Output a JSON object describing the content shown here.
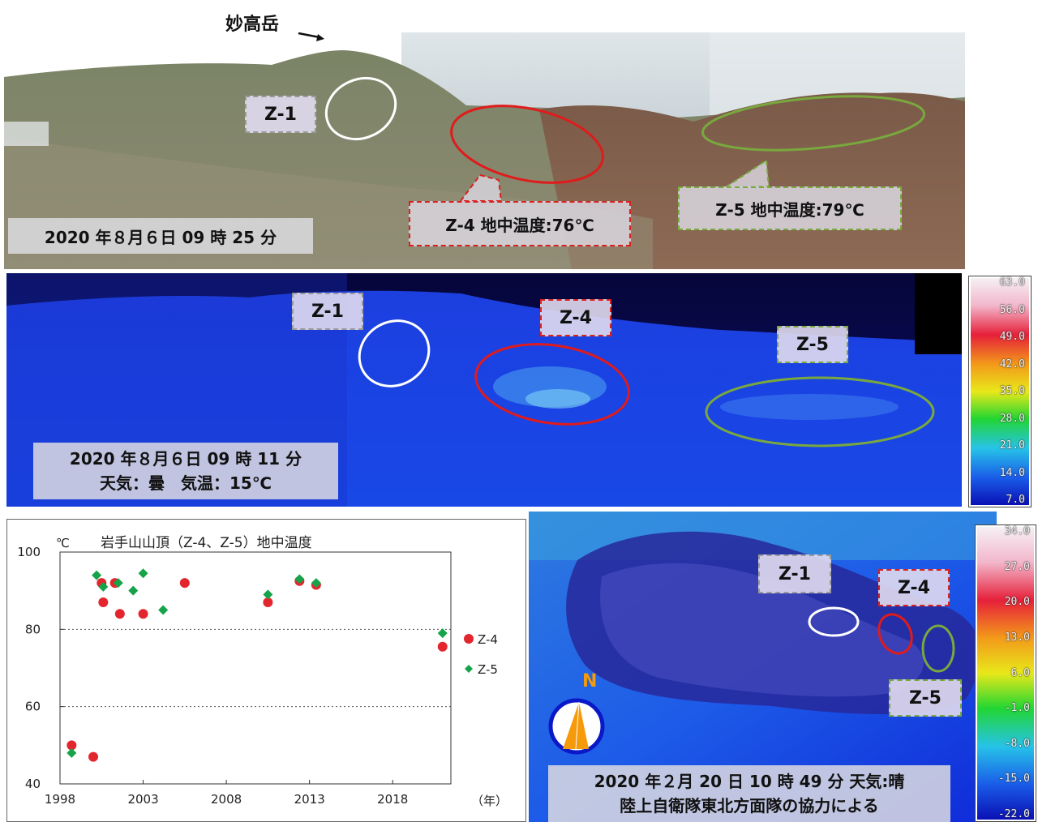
{
  "top_photo": {
    "peak_label": "妙高岳",
    "timestamp": "2020 年８月６日 09 時 25 分",
    "zones": {
      "z1": "Z-1",
      "z4": "Z-4  地中温度:76℃",
      "z5": "Z-5  地中温度:79℃"
    }
  },
  "thermal_top": {
    "zones": {
      "z1": "Z-1",
      "z4": "Z-4",
      "z5": "Z-5"
    },
    "info_line1": "2020 年８月６日 09 時 11 分",
    "info_line2": "天気：曇　気温：15℃",
    "scale": [
      "63.0",
      "56.0",
      "49.0",
      "42.0",
      "35.0",
      "28.0",
      "21.0",
      "14.0",
      "7.0"
    ]
  },
  "thermal_bottom": {
    "zones": {
      "z1": "Z-1",
      "z4": "Z-4",
      "z5": "Z-5"
    },
    "compass_label": "N",
    "info_line1": "2020 年２月 20 日 10 時 49 分 天気:晴",
    "info_line2": "陸上自衛隊東北方面隊の協力による",
    "scale": [
      "34.0",
      "27.0",
      "20.0",
      "13.0",
      "6.0",
      "-1.0",
      "-8.0",
      "-15.0",
      "-22.0"
    ]
  },
  "colors": {
    "z1_ellipse": "#ffffff",
    "z4_ellipse": "#e01b1b",
    "z5_ellipse": "#79a83e",
    "z4_marker": "#e3262e",
    "z5_marker": "#16a34a",
    "compass_needle": "#f59a0b"
  },
  "chart_data": {
    "type": "scatter",
    "title": "岩手山山頂（Z-4、Z-5）地中温度",
    "unit_label": "℃",
    "xlabel": "（年）",
    "xlim": [
      1998,
      2021.5
    ],
    "ylim": [
      40,
      100
    ],
    "xticks": [
      "1998",
      "2003",
      "2008",
      "2013",
      "2018"
    ],
    "yticks": [
      "40",
      "60",
      "80",
      "100"
    ],
    "grid": "dotted at 60 and 80",
    "legend": "right",
    "series": [
      {
        "name": "Z-4",
        "marker": "circle",
        "points": [
          [
            1998.7,
            50
          ],
          [
            2000.0,
            47
          ],
          [
            2000.5,
            92
          ],
          [
            2000.6,
            87
          ],
          [
            2001.3,
            92
          ],
          [
            2001.6,
            84
          ],
          [
            2003.0,
            84
          ],
          [
            2005.5,
            92
          ],
          [
            2010.5,
            87
          ],
          [
            2012.4,
            92.5
          ],
          [
            2013.4,
            91.5
          ],
          [
            2021.0,
            75.5
          ]
        ]
      },
      {
        "name": "Z-5",
        "marker": "diamond",
        "points": [
          [
            1998.7,
            48
          ],
          [
            2000.2,
            94
          ],
          [
            2000.6,
            91
          ],
          [
            2001.5,
            92
          ],
          [
            2002.4,
            90
          ],
          [
            2003.0,
            94.5
          ],
          [
            2004.2,
            85
          ],
          [
            2010.5,
            89
          ],
          [
            2012.4,
            93
          ],
          [
            2013.4,
            92
          ],
          [
            2021.0,
            79
          ]
        ]
      }
    ]
  }
}
